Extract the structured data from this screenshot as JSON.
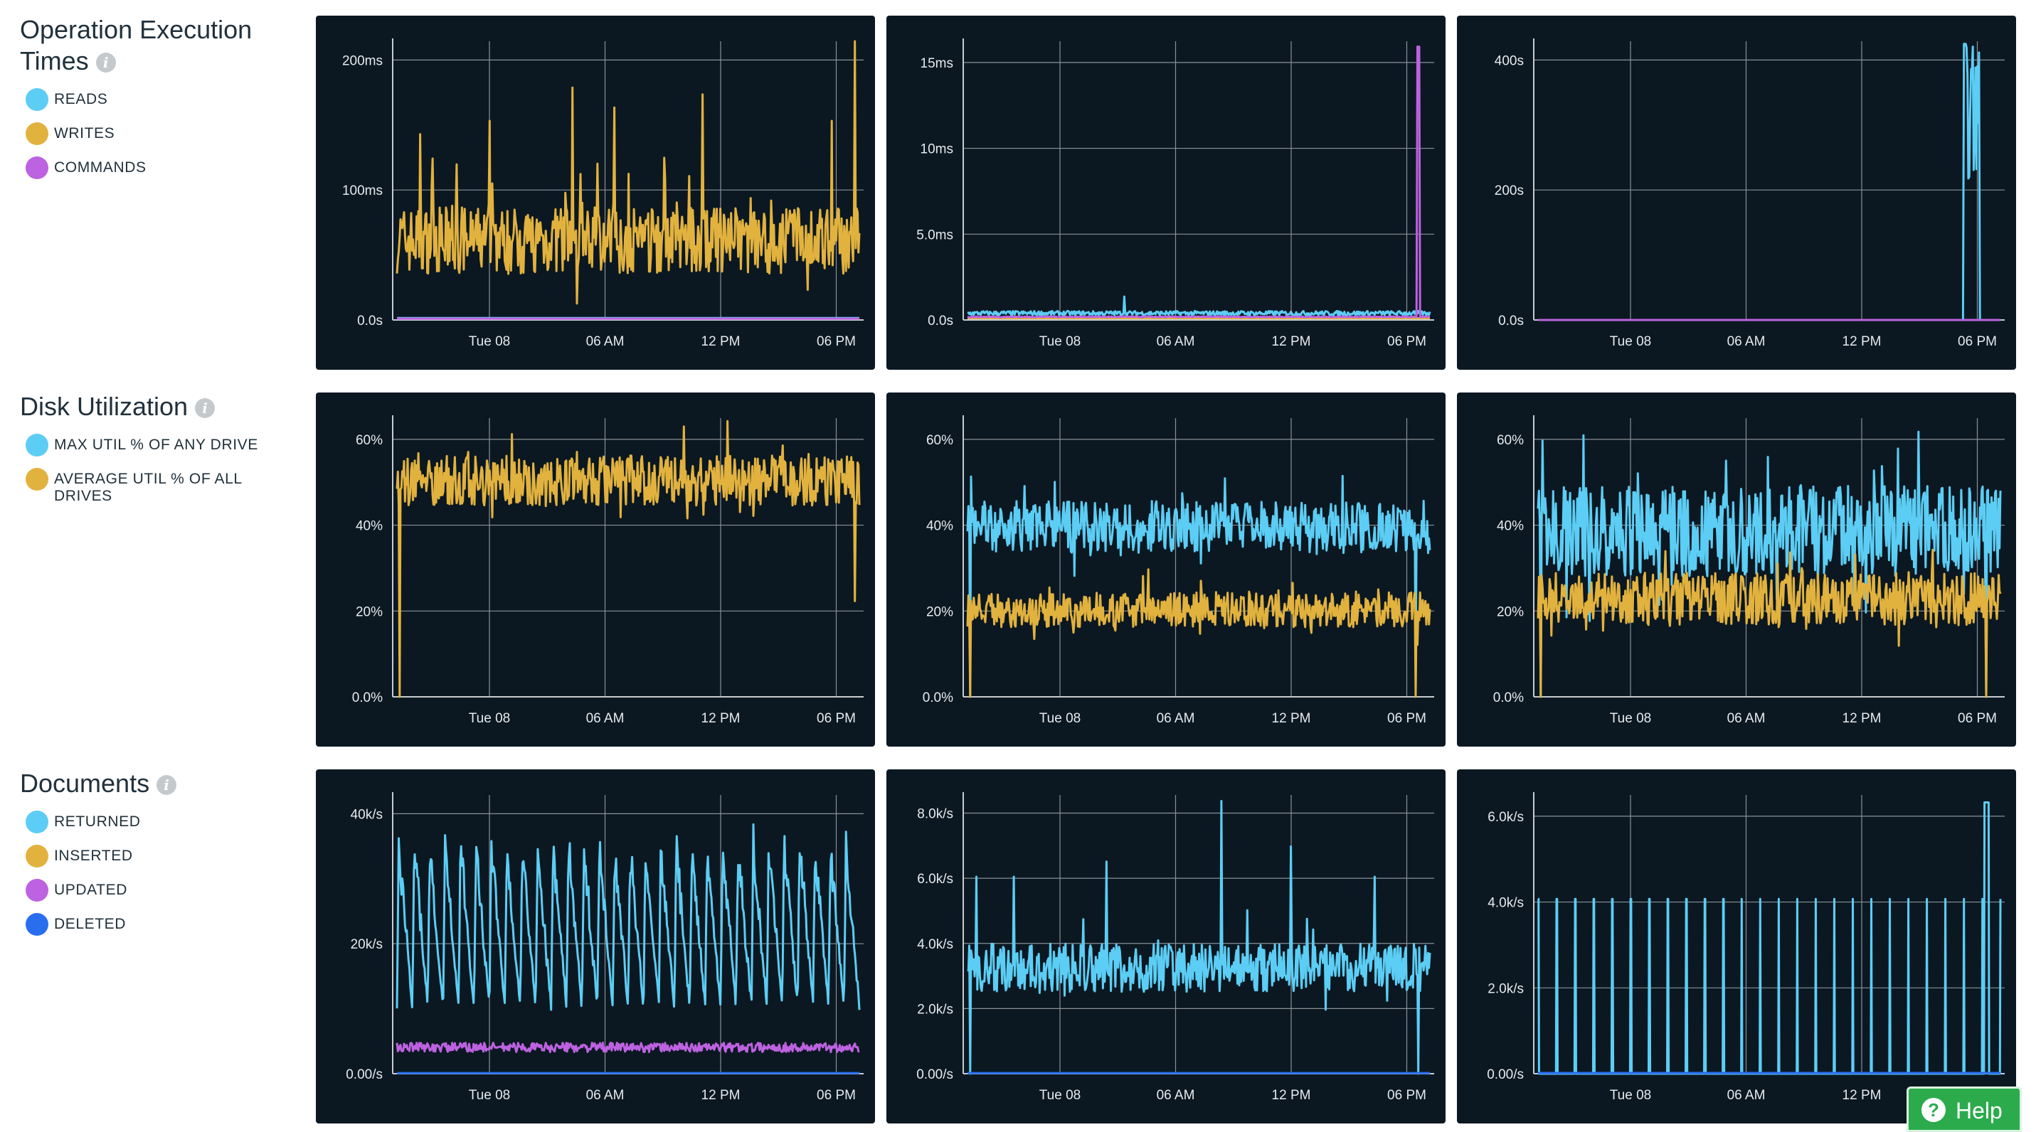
{
  "sections": [
    {
      "title": "Operation Execution Times",
      "title_line1": "Operation Execution",
      "title_line2": "Times",
      "info_icon": "info-icon",
      "legend": [
        {
          "label": "READS",
          "color": "#5ccdf4"
        },
        {
          "label": "WRITES",
          "color": "#e2b23e"
        },
        {
          "label": "COMMANDS",
          "color": "#bd62e0"
        }
      ]
    },
    {
      "title": "Disk Utilization",
      "info_icon": "info-icon",
      "legend": [
        {
          "label": "MAX UTIL % OF ANY DRIVE",
          "color": "#5ccdf4"
        },
        {
          "label": "AVERAGE UTIL % OF ALL DRIVES",
          "label_line1": "AVERAGE UTIL % OF ALL",
          "label_line2": "DRIVES",
          "color": "#e2b23e"
        }
      ]
    },
    {
      "title": "Documents",
      "info_icon": "info-icon",
      "legend": [
        {
          "label": "RETURNED",
          "color": "#5ccdf4"
        },
        {
          "label": "INSERTED",
          "color": "#e2b23e"
        },
        {
          "label": "UPDATED",
          "color": "#bd62e0"
        },
        {
          "label": "DELETED",
          "color": "#2a6ef0"
        }
      ]
    }
  ],
  "help": {
    "label": "Help",
    "icon": "question-circle-icon"
  },
  "chart_data": [
    {
      "type": "line",
      "y_ticks": [
        "0.0s",
        "100ms",
        "200ms"
      ],
      "x_ticks": [
        "Tue 08",
        "06 AM",
        "12 PM",
        "06 PM"
      ],
      "ylim": [
        0,
        210
      ],
      "series": [
        {
          "color": "#e2b23e",
          "pattern": "noise",
          "base": 60,
          "amp": 25,
          "spikes": [
            [
              0.05,
              140
            ],
            [
              0.2,
              150
            ],
            [
              0.38,
              175
            ],
            [
              0.47,
              160
            ],
            [
              0.66,
              170
            ],
            [
              0.94,
              150
            ],
            [
              0.99,
              210
            ]
          ]
        },
        {
          "color": "#5ccdf4",
          "pattern": "flat",
          "base": 1.5
        },
        {
          "color": "#bd62e0",
          "pattern": "flat",
          "base": 1
        }
      ]
    },
    {
      "type": "line",
      "y_ticks": [
        "0.0s",
        "5.0ms",
        "10ms",
        "15ms"
      ],
      "x_ticks": [
        "Tue 08",
        "06 AM",
        "12 PM",
        "06 PM"
      ],
      "ylim": [
        0,
        15.5
      ],
      "series": [
        {
          "color": "#e2b23e",
          "pattern": "flat",
          "base": 0.1
        },
        {
          "color": "#5ccdf4",
          "pattern": "lownoise",
          "base": 0.25,
          "amp": 0.25,
          "spikes": [
            [
              0.34,
              1.3
            ]
          ]
        },
        {
          "color": "#bd62e0",
          "pattern": "spike_end",
          "base": 0.15,
          "spike_x": 0.975,
          "spike_y": 15.2
        }
      ]
    },
    {
      "type": "line",
      "y_ticks": [
        "0.0s",
        "200s",
        "400s"
      ],
      "x_ticks": [
        "Tue 08",
        "06 AM",
        "12 PM",
        "06 PM"
      ],
      "ylim": [
        0,
        530
      ],
      "series": [
        {
          "color": "#5ccdf4",
          "pattern": "burst_end",
          "base": 0,
          "start": 0.92,
          "end": 0.955,
          "peak": 525
        },
        {
          "color": "#bd62e0",
          "pattern": "flat",
          "base": 0
        }
      ]
    },
    {
      "type": "line",
      "y_ticks": [
        "0.0%",
        "20%",
        "40%",
        "60%"
      ],
      "x_ticks": [
        "Tue 08",
        "06 AM",
        "12 PM",
        "06 PM"
      ],
      "ylim": [
        0,
        67
      ],
      "series": [
        {
          "color": "#e2b23e",
          "pattern": "noise",
          "base": 52,
          "amp": 6,
          "dips": [
            [
              0.005,
              0
            ],
            [
              0.99,
              23
            ]
          ]
        }
      ]
    },
    {
      "type": "line",
      "y_ticks": [
        "0.0%",
        "20%",
        "40%",
        "60%"
      ],
      "x_ticks": [
        "Tue 08",
        "06 AM",
        "12 PM",
        "06 PM"
      ],
      "ylim": [
        0,
        64
      ],
      "series": [
        {
          "color": "#5ccdf4",
          "pattern": "noise",
          "base": 39,
          "amp": 6,
          "dips": [
            [
              0.005,
              0
            ],
            [
              0.97,
              5
            ]
          ]
        },
        {
          "color": "#e2b23e",
          "pattern": "noise",
          "base": 20,
          "amp": 4,
          "dips": [
            [
              0.005,
              0
            ],
            [
              0.97,
              0
            ]
          ]
        }
      ]
    },
    {
      "type": "line",
      "y_ticks": [
        "0.0%",
        "20%",
        "40%",
        "60%"
      ],
      "x_ticks": [
        "Tue 08",
        "06 AM",
        "12 PM",
        "06 PM"
      ],
      "ylim": [
        0,
        74
      ],
      "series": [
        {
          "color": "#5ccdf4",
          "pattern": "noise",
          "base": 44,
          "amp": 12,
          "dips": [
            [
              0.005,
              0
            ],
            [
              0.97,
              0
            ]
          ]
        },
        {
          "color": "#e2b23e",
          "pattern": "noise",
          "base": 26,
          "amp": 7,
          "dips": [
            [
              0.005,
              0
            ],
            [
              0.97,
              0
            ]
          ]
        }
      ]
    },
    {
      "type": "line",
      "y_ticks": [
        "0.00/s",
        "20k/s",
        "40k/s"
      ],
      "x_ticks": [
        "Tue 08",
        "06 AM",
        "12 PM",
        "06 PM"
      ],
      "ylim": [
        0,
        45
      ],
      "series": [
        {
          "color": "#5ccdf4",
          "pattern": "sawtooth",
          "base": 10,
          "amp": 28,
          "periods": 30
        },
        {
          "color": "#bd62e0",
          "pattern": "lownoise",
          "base": 3.5,
          "amp": 1.5
        },
        {
          "color": "#2a6ef0",
          "pattern": "flat",
          "base": 0.1
        }
      ]
    },
    {
      "type": "line",
      "y_ticks": [
        "0.00/s",
        "2.0k/s",
        "4.0k/s",
        "6.0k/s",
        "8.0k/s"
      ],
      "x_ticks": [
        "Tue 08",
        "06 AM",
        "12 PM",
        "06 PM"
      ],
      "ylim": [
        0,
        9.2
      ],
      "series": [
        {
          "color": "#5ccdf4",
          "pattern": "noise",
          "base": 3.5,
          "amp": 0.8,
          "spikes": [
            [
              0.02,
              6.5
            ],
            [
              0.1,
              6.5
            ],
            [
              0.3,
              7
            ],
            [
              0.55,
              9
            ],
            [
              0.7,
              7.5
            ],
            [
              0.88,
              6.5
            ]
          ],
          "dips": [
            [
              0.005,
              0
            ],
            [
              0.975,
              0
            ]
          ]
        },
        {
          "color": "#2a6ef0",
          "pattern": "flat",
          "base": 0.02
        }
      ]
    },
    {
      "type": "line",
      "y_ticks": [
        "0.00/s",
        "2.0k/s",
        "4.0k/s",
        "6.0k/s"
      ],
      "x_ticks": [
        "Tue 08",
        "06 AM",
        "12 PM"
      ],
      "ylim": [
        0,
        7.5
      ],
      "series": [
        {
          "color": "#5ccdf4",
          "pattern": "pulses",
          "base": 0,
          "peak": 4.7,
          "count": 25,
          "last_peak": 7.3
        },
        {
          "color": "#2a6ef0",
          "pattern": "flat",
          "base": 0.02
        }
      ]
    }
  ]
}
